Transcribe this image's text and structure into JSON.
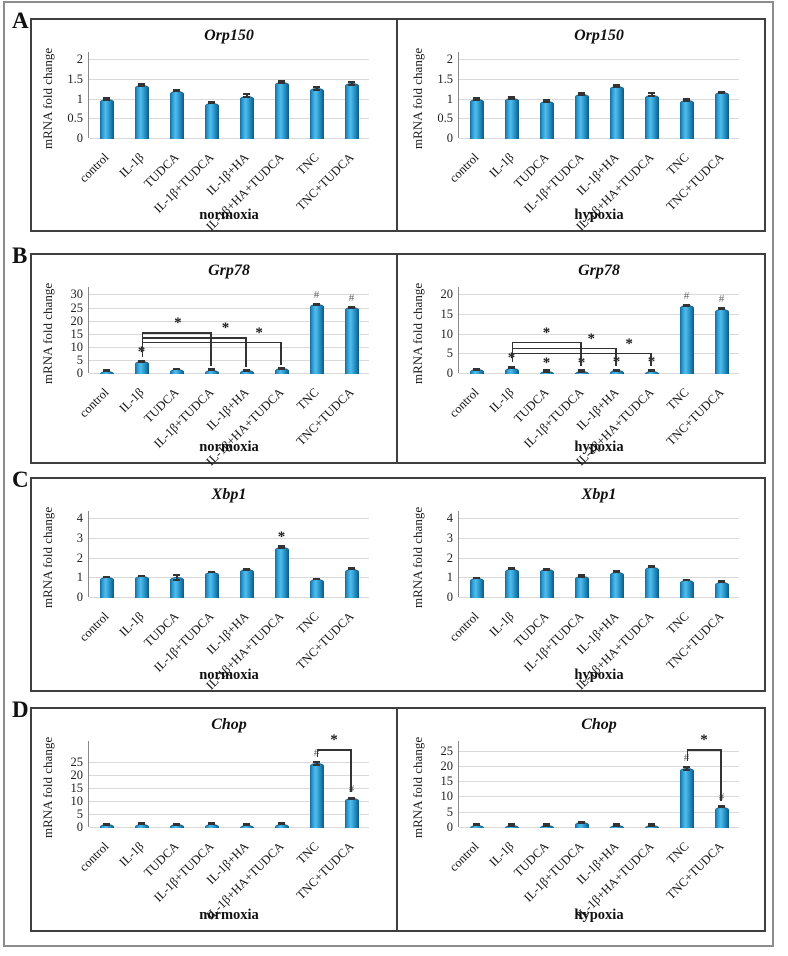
{
  "figure": {
    "panels": [
      {
        "letter": "A"
      },
      {
        "letter": "B"
      },
      {
        "letter": "C"
      },
      {
        "letter": "D"
      }
    ]
  },
  "colors": {
    "bar_mid": "#2d9fd6",
    "bar_light": "#55bdea",
    "bar_dark_left": "#16699a",
    "bar_dark_right": "#10597f",
    "bar_top_edge": "#0e5c84",
    "error_bar": "#333333",
    "star_mark": "#1a1a1a",
    "hash_mark": "#666666",
    "gridline": "#d9d9d9",
    "axis_line": "#8a8a8a",
    "box_border": "#3f3f3f",
    "outer_border": "#8c8c8c",
    "bracket": "#333333"
  },
  "chart_data": [
    {
      "panel": "A",
      "type": "bar",
      "title": "Orp150",
      "condition": "normoxia",
      "ylabel": "mRNA fold change",
      "ylim": [
        0,
        2
      ],
      "yticks": [
        0,
        0.5,
        1,
        1.5,
        2
      ],
      "ytick_labels": [
        "0",
        "0.5",
        "1",
        "1.5",
        "2"
      ],
      "categories": [
        "control",
        "IL-1β",
        "TUDCA",
        "IL-1β+TUDCA",
        "IL-1β+HA",
        "IL-1β+HA+TUDCA",
        "TNC",
        "TNC+TUDCA"
      ],
      "values": [
        1.0,
        1.35,
        1.21,
        0.9,
        1.08,
        1.43,
        1.27,
        1.39
      ],
      "errors": [
        0.05,
        0.05,
        0.05,
        0.04,
        0.06,
        0.05,
        0.06,
        0.06
      ],
      "marks": [
        "",
        "",
        "",
        "",
        "",
        "",
        "",
        ""
      ],
      "brackets": []
    },
    {
      "panel": "A",
      "type": "bar",
      "title": "Orp150",
      "condition": "hypoxia",
      "ylabel": "mRNA fold change",
      "ylim": [
        0,
        2
      ],
      "yticks": [
        0,
        0.5,
        1,
        1.5,
        2
      ],
      "ytick_labels": [
        "0",
        "0.5",
        "1",
        "1.5",
        "2"
      ],
      "categories": [
        "control",
        "IL-1β",
        "TUDCA",
        "IL-1β+TUDCA",
        "IL-1β+HA",
        "IL-1β+HA+TUDCA",
        "TNC",
        "TNC+TUDCA"
      ],
      "values": [
        1.0,
        1.01,
        0.95,
        1.12,
        1.33,
        1.1,
        0.96,
        1.16
      ],
      "errors": [
        0.05,
        0.05,
        0.05,
        0.05,
        0.05,
        0.06,
        0.05,
        0.05
      ],
      "marks": [
        "",
        "",
        "",
        "",
        "",
        "",
        "",
        ""
      ],
      "brackets": []
    },
    {
      "panel": "B",
      "type": "bar",
      "title": "Grp78",
      "condition": "normoxia",
      "ylabel": "mRNA fold change",
      "ylim": [
        0,
        30
      ],
      "yticks": [
        0,
        5,
        10,
        15,
        20,
        25,
        30
      ],
      "ytick_labels": [
        "0",
        "5",
        "10",
        "15",
        "20",
        "25",
        "30"
      ],
      "categories": [
        "control",
        "IL-1β",
        "TUDCA",
        "IL-1β+TUDCA",
        "IL-1β+HA",
        "IL-1β+HA+TUDCA",
        "TNC",
        "TNC+TUDCA"
      ],
      "values": [
        0.9,
        4.5,
        1.5,
        1.2,
        1.1,
        1.8,
        26.2,
        25.1
      ],
      "errors": [
        0.2,
        0.5,
        0.3,
        0.2,
        0.2,
        0.3,
        0.5,
        0.5
      ],
      "marks": [
        "",
        "*",
        "",
        "",
        "",
        "",
        "#",
        "#"
      ],
      "brackets": [
        {
          "x1": 1,
          "x2": 3,
          "y": 15.5,
          "y1": 6.3,
          "y2": 2.6,
          "label": "*",
          "label_pos": 0.52
        },
        {
          "x1": 1,
          "x2": 4,
          "y": 13.7,
          "y1": 6.3,
          "y2": 2.2,
          "label": "*",
          "label_pos": 0.8
        },
        {
          "x1": 1,
          "x2": 5,
          "y": 11.9,
          "y1": 6.3,
          "y2": 3.0,
          "label": "*",
          "label_pos": 0.84
        }
      ]
    },
    {
      "panel": "B",
      "type": "bar",
      "title": "Grp78",
      "condition": "hypoxia",
      "ylabel": "mRNA fold change",
      "ylim": [
        0,
        20
      ],
      "yticks": [
        0,
        5,
        10,
        15,
        20
      ],
      "ytick_labels": [
        "0",
        "5",
        "10",
        "15",
        "20"
      ],
      "categories": [
        "control",
        "IL-1β",
        "TUDCA",
        "IL-1β+TUDCA",
        "IL-1β+HA",
        "IL-1β+HA+TUDCA",
        "TNC",
        "TNC+TUDCA"
      ],
      "values": [
        0.9,
        1.4,
        0.5,
        0.5,
        0.65,
        0.55,
        17.3,
        16.4
      ],
      "errors": [
        0.15,
        0.3,
        0.1,
        0.1,
        0.1,
        0.1,
        0.4,
        0.4
      ],
      "marks": [
        "",
        "*",
        "*",
        "*",
        "*",
        "*",
        "#",
        "#"
      ],
      "brackets": [
        {
          "x1": 1,
          "x2": 3,
          "y": 7.9,
          "y1": 2.9,
          "y2": 1.7,
          "label": "*",
          "label_pos": 0.5
        },
        {
          "x1": 1,
          "x2": 4,
          "y": 6.4,
          "y1": 2.9,
          "y2": 1.8,
          "label": "*",
          "label_pos": 0.76
        },
        {
          "x1": 1,
          "x2": 5,
          "y": 5.2,
          "y1": 2.9,
          "y2": 1.8,
          "label": "*",
          "label_pos": 0.84
        }
      ]
    },
    {
      "panel": "C",
      "type": "bar",
      "title": "Xbp1",
      "condition": "normoxia",
      "ylabel": "mRNA fold change",
      "ylim": [
        0,
        4
      ],
      "yticks": [
        0,
        1,
        2,
        3,
        4
      ],
      "ytick_labels": [
        "0",
        "1",
        "2",
        "3",
        "4"
      ],
      "categories": [
        "control",
        "IL-1β",
        "TUDCA",
        "IL-1β+TUDCA",
        "IL-1β+HA",
        "IL-1β+HA+TUDCA",
        "TNC",
        "TNC+TUDCA"
      ],
      "values": [
        1.0,
        1.07,
        1.0,
        1.28,
        1.42,
        2.55,
        0.93,
        1.45
      ],
      "errors": [
        0.05,
        0.05,
        0.16,
        0.06,
        0.07,
        0.08,
        0.06,
        0.06
      ],
      "marks": [
        "",
        "",
        "",
        "",
        "",
        "*",
        "",
        ""
      ],
      "brackets": []
    },
    {
      "panel": "C",
      "type": "bar",
      "title": "Xbp1",
      "condition": "hypoxia",
      "ylabel": "mRNA fold change",
      "ylim": [
        0,
        4
      ],
      "yticks": [
        0,
        1,
        2,
        3,
        4
      ],
      "ytick_labels": [
        "0",
        "1",
        "2",
        "3",
        "4"
      ],
      "categories": [
        "control",
        "IL-1β",
        "TUDCA",
        "IL-1β+TUDCA",
        "IL-1β+HA",
        "IL-1β+HA+TUDCA",
        "TNC",
        "TNC+TUDCA"
      ],
      "values": [
        0.95,
        1.45,
        1.42,
        1.05,
        1.28,
        1.55,
        0.85,
        0.78
      ],
      "errors": [
        0.05,
        0.06,
        0.07,
        0.1,
        0.08,
        0.07,
        0.06,
        0.07
      ],
      "marks": [
        "",
        "",
        "",
        "",
        "",
        "",
        "",
        ""
      ],
      "brackets": []
    },
    {
      "panel": "D",
      "type": "bar",
      "title": "Chop",
      "condition": "normoxia",
      "ylabel": "mRNA fold change",
      "ylim": [
        0,
        25
      ],
      "yticks": [
        0,
        5,
        10,
        15,
        20,
        25
      ],
      "ytick_labels": [
        "0",
        "5",
        "10",
        "15",
        "20",
        "25"
      ],
      "categories": [
        "control",
        "IL-1β",
        "TUDCA",
        "IL-1β+TUDCA",
        "IL-1β+HA",
        "IL-1β+HA+TUDCA",
        "TNC",
        "TNC+TUDCA"
      ],
      "values": [
        1.0,
        1.2,
        1.0,
        1.3,
        0.9,
        1.2,
        24.5,
        11.0
      ],
      "errors": [
        0.15,
        0.2,
        0.15,
        0.25,
        0.15,
        0.2,
        0.8,
        0.5
      ],
      "marks": [
        "",
        "",
        "",
        "",
        "",
        "",
        "#",
        "#"
      ],
      "brackets": [
        {
          "x1": 6,
          "x2": 7,
          "y": 30,
          "y1": 27,
          "y2": 13.5,
          "label": "*",
          "label_pos": 0.5
        }
      ]
    },
    {
      "panel": "D",
      "type": "bar",
      "title": "Chop",
      "condition": "hypoxia",
      "ylabel": "mRNA fold change",
      "ylim": [
        0,
        25
      ],
      "yticks": [
        0,
        5,
        10,
        15,
        20,
        25
      ],
      "ytick_labels": [
        "0",
        "5",
        "10",
        "15",
        "20",
        "25"
      ],
      "categories": [
        "control",
        "IL-1β",
        "TUDCA",
        "IL-1β+TUDCA",
        "IL-1β+HA",
        "IL-1β+HA+TUDCA",
        "TNC",
        "TNC+TUDCA"
      ],
      "values": [
        0.8,
        0.6,
        0.6,
        1.5,
        0.6,
        0.6,
        19.2,
        6.7
      ],
      "errors": [
        0.12,
        0.1,
        0.1,
        0.15,
        0.1,
        0.1,
        0.7,
        0.5
      ],
      "marks": [
        "",
        "",
        "",
        "",
        "",
        "",
        "#",
        "#"
      ],
      "brackets": [
        {
          "x1": 6,
          "x2": 7,
          "y": 25.5,
          "y1": 21.8,
          "y2": 8.6,
          "label": "*",
          "label_pos": 0.5
        }
      ]
    }
  ]
}
